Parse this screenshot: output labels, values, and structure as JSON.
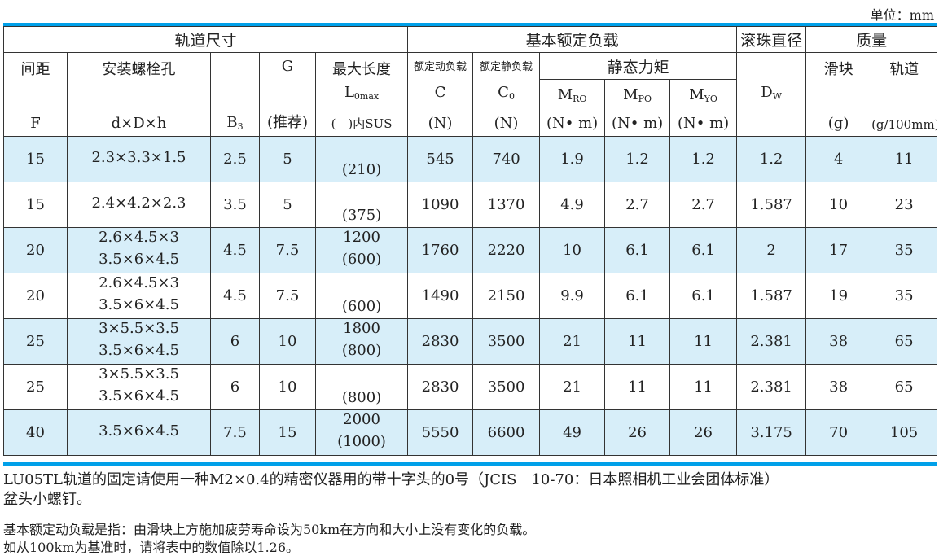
{
  "unit_label": "单位：mm",
  "header": {
    "group_rail": "轨道尺寸",
    "group_load": "基本额定负载",
    "group_ball": "滚珠直径",
    "group_mass": "质量",
    "pitch": "间距",
    "pitch_sym": "F",
    "hole": "安装螺栓孔",
    "hole_sym": "d×D×h",
    "b3_sym": "B",
    "b3_sub": "3",
    "g_sym": "G",
    "g_note": "(推荐)",
    "maxlen": "最大长度",
    "maxlen_sym": "L",
    "maxlen_sub": "0max",
    "maxlen_note": "(　)内SUS",
    "dyn": "额定动负载",
    "dyn_sym": "C",
    "dyn_unit": "(N)",
    "stat": "额定静负载",
    "stat_sym": "C",
    "stat_sub": "0",
    "stat_unit": "(N)",
    "moment": "静态力矩",
    "mro": "M",
    "mro_sub": "RO",
    "mpo": "M",
    "mpo_sub": "PO",
    "myo": "M",
    "myo_sub": "YO",
    "moment_unit": "(N• m)",
    "dw": "D",
    "dw_sub": "W",
    "slider": "滑块",
    "slider_unit": "(g)",
    "rail": "轨道",
    "rail_unit": "(g/100mm)"
  },
  "rows": [
    {
      "F": "15",
      "hole1": "2.3×3.3×1.5",
      "hole2": "",
      "B3": "2.5",
      "G": "5",
      "L1": "",
      "L2": "(210)",
      "C": "545",
      "C0": "740",
      "MRO": "1.9",
      "MPO": "1.2",
      "MYO": "1.2",
      "Dw": "1.2",
      "slider": "4",
      "rail": "11"
    },
    {
      "F": "15",
      "hole1": "2.4×4.2×2.3",
      "hole2": "",
      "B3": "3.5",
      "G": "5",
      "L1": "",
      "L2": "(375)",
      "C": "1090",
      "C0": "1370",
      "MRO": "4.9",
      "MPO": "2.7",
      "MYO": "2.7",
      "Dw": "1.587",
      "slider": "10",
      "rail": "23"
    },
    {
      "F": "20",
      "hole1": "2.6×4.5×3",
      "hole2": "3.5×6×4.5",
      "B3": "4.5",
      "G": "7.5",
      "L1": "1200",
      "L2": "(600)",
      "C": "1760",
      "C0": "2220",
      "MRO": "10",
      "MPO": "6.1",
      "MYO": "6.1",
      "Dw": "2",
      "slider": "17",
      "rail": "35"
    },
    {
      "F": "20",
      "hole1": "2.6×4.5×3",
      "hole2": "3.5×6×4.5",
      "B3": "4.5",
      "G": "7.5",
      "L1": "",
      "L2": "(600)",
      "C": "1490",
      "C0": "2150",
      "MRO": "9.9",
      "MPO": "6.1",
      "MYO": "6.1",
      "Dw": "1.587",
      "slider": "19",
      "rail": "35"
    },
    {
      "F": "25",
      "hole1": "3×5.5×3.5",
      "hole2": "3.5×6×4.5",
      "B3": "6",
      "G": "10",
      "L1": "1800",
      "L2": "(800)",
      "C": "2830",
      "C0": "3500",
      "MRO": "21",
      "MPO": "11",
      "MYO": "11",
      "Dw": "2.381",
      "slider": "38",
      "rail": "65"
    },
    {
      "F": "25",
      "hole1": "3×5.5×3.5",
      "hole2": "3.5×6×4.5",
      "B3": "6",
      "G": "10",
      "L1": "",
      "L2": "(800)",
      "C": "2830",
      "C0": "3500",
      "MRO": "21",
      "MPO": "11",
      "MYO": "11",
      "Dw": "2.381",
      "slider": "38",
      "rail": "65"
    },
    {
      "F": "40",
      "hole1": "3.5×6×4.5",
      "hole2": "",
      "B3": "7.5",
      "G": "15",
      "L1": "2000",
      "L2": "(1000)",
      "C": "5550",
      "C0": "6600",
      "MRO": "49",
      "MPO": "26",
      "MYO": "26",
      "Dw": "3.175",
      "slider": "70",
      "rail": "105"
    }
  ],
  "notes": {
    "line1": "LU05TL轨道的固定请使用一种M2×0.4的精密仪器用的带十字头的0号（JCIS　10-70：日本照相机工业会团体标准）",
    "line2": "盆头小螺钉。",
    "line3": "基本额定动负载是指：由滑块上方施加疲劳寿命设为50km在方向和大小上没有变化的负载。",
    "line4": "如从100km为基准时，请将表中的数值除以1.26。"
  },
  "colors": {
    "accent": "#00a0e9",
    "row_shade": "#d7eef9"
  }
}
